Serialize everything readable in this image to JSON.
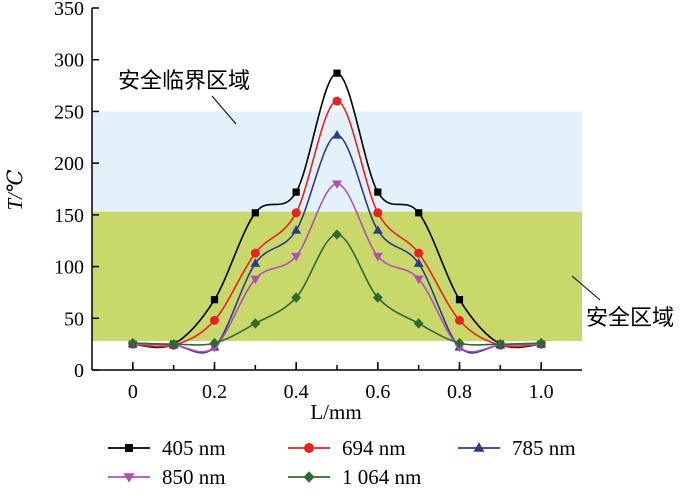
{
  "chart_data": {
    "type": "line",
    "title": "",
    "xlabel": "L/mm",
    "ylabel": "T/℃",
    "xlim": [
      -0.1,
      1.1
    ],
    "ylim": [
      0,
      350
    ],
    "x": [
      0,
      0.1,
      0.2,
      0.3,
      0.4,
      0.5,
      0.6,
      0.7,
      0.8,
      0.9,
      1.0
    ],
    "x_ticks": [
      "0",
      "0.2",
      "0.4",
      "0.6",
      "0.8",
      "1.0"
    ],
    "y_ticks": [
      "0",
      "50",
      "100",
      "150",
      "200",
      "250",
      "300",
      "350"
    ],
    "grid": false,
    "legend_position": "bottom",
    "series": [
      {
        "name": "405 nm",
        "color": "#000000",
        "marker": "square",
        "values": [
          25,
          25,
          68,
          152,
          172,
          287,
          172,
          152,
          68,
          25,
          25
        ]
      },
      {
        "name": "694 nm",
        "color": "#e8231e",
        "marker": "circle",
        "values": [
          25,
          24,
          48,
          113,
          152,
          260,
          152,
          113,
          48,
          24,
          25
        ]
      },
      {
        "name": "785 nm",
        "color": "#2e3b8c",
        "marker": "triangle-up",
        "values": [
          25,
          24,
          22,
          103,
          135,
          227,
          135,
          103,
          22,
          24,
          25
        ]
      },
      {
        "name": "850 nm",
        "color": "#b04fb5",
        "marker": "triangle-down",
        "values": [
          25,
          24,
          22,
          88,
          110,
          180,
          110,
          88,
          22,
          24,
          25
        ]
      },
      {
        "name": "1 064 nm",
        "color": "#2e6b2e",
        "marker": "diamond",
        "values": [
          26,
          25,
          26,
          45,
          70,
          131,
          70,
          45,
          26,
          25,
          26
        ]
      }
    ],
    "regions": [
      {
        "label": "安全临界区域",
        "y_range": [
          153,
          250
        ],
        "color": "#e3f1fb"
      },
      {
        "label": "安全区域",
        "y_range": [
          28,
          153
        ],
        "color": "#c9d86a"
      }
    ]
  }
}
